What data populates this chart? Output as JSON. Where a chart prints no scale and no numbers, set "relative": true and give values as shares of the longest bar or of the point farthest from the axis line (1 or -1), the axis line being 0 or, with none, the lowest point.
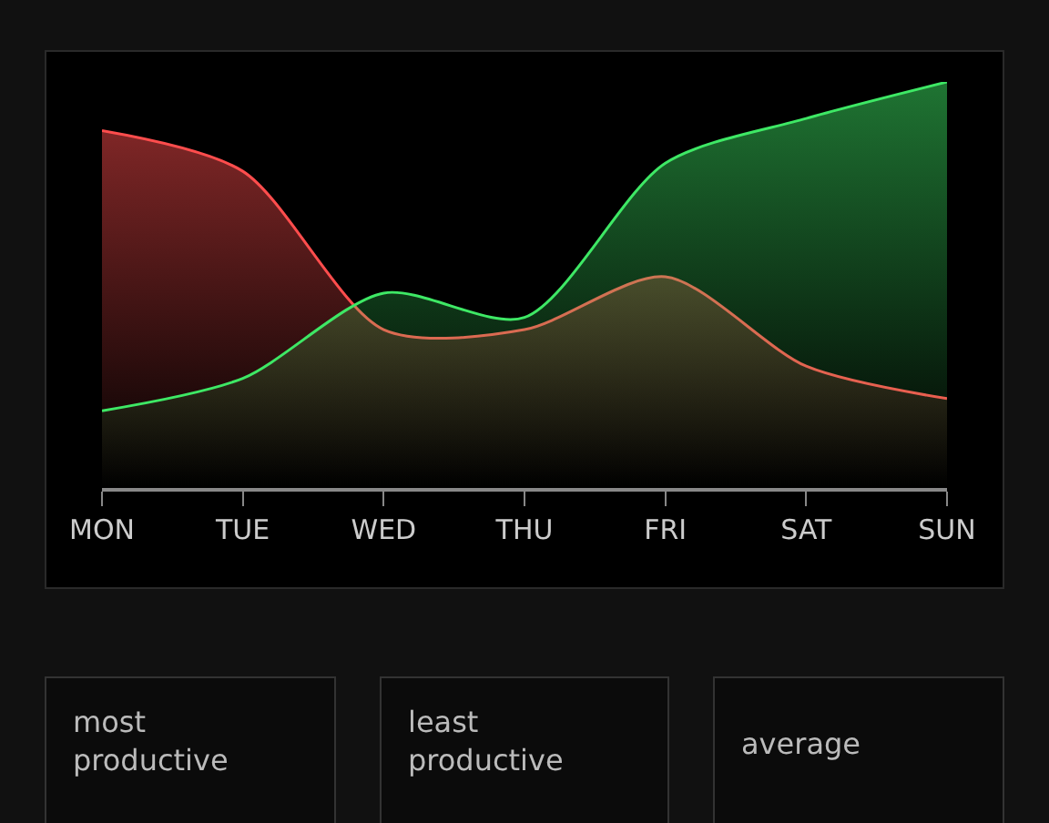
{
  "chart_data": {
    "type": "area",
    "relative": true,
    "categories": [
      "MON",
      "TUE",
      "WED",
      "THU",
      "FRI",
      "SAT",
      "SUN"
    ],
    "series": [
      {
        "color": "#ff4d4d",
        "values": [
          0.88,
          0.78,
          0.39,
          0.39,
          0.52,
          0.3,
          0.22
        ]
      },
      {
        "color": "#3ee865",
        "values": [
          0.19,
          0.27,
          0.48,
          0.42,
          0.8,
          0.91,
          1.0
        ]
      }
    ],
    "grid": false,
    "legend": false,
    "marker": "none",
    "line_style": "solid",
    "annotations": [
      "most productive",
      "least productive",
      "average"
    ]
  }
}
